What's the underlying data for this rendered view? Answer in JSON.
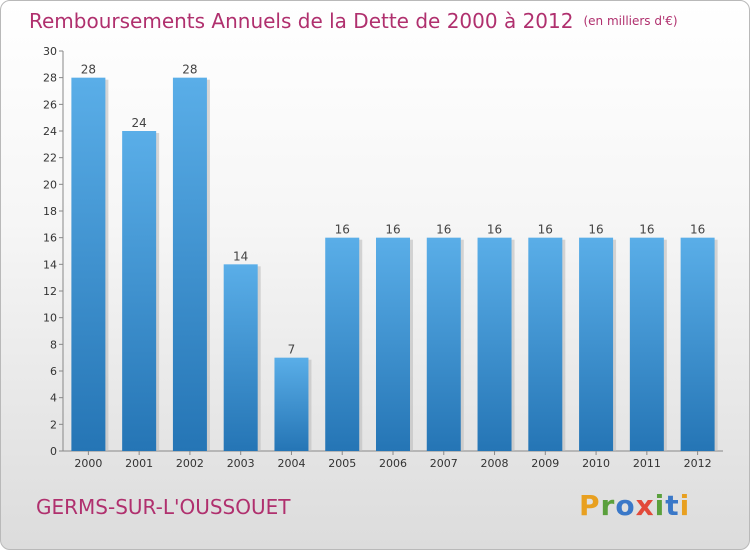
{
  "header": {
    "title": "Remboursements Annuels de la Dette de 2000 à 2012",
    "unit": "(en milliers d'€)"
  },
  "footer": {
    "town": "GERMS-SUR-L'OUSSOUET",
    "logo": {
      "text": "Proxiti",
      "letters": [
        "P",
        "r",
        "o",
        "x",
        "i",
        "t",
        "i"
      ],
      "colors": [
        "#e8a020",
        "#5aa03c",
        "#3a78c8",
        "#e24a3a",
        "#5aa03c",
        "#3a78c8",
        "#e8a020"
      ]
    }
  },
  "chart_data": {
    "type": "bar",
    "categories": [
      "2000",
      "2001",
      "2002",
      "2003",
      "2004",
      "2005",
      "2006",
      "2007",
      "2008",
      "2009",
      "2010",
      "2011",
      "2012"
    ],
    "values": [
      28,
      24,
      28,
      14,
      7,
      16,
      16,
      16,
      16,
      16,
      16,
      16,
      16
    ],
    "ylim": [
      0,
      30
    ],
    "yticks": [
      0,
      2,
      4,
      6,
      8,
      10,
      12,
      14,
      16,
      18,
      20,
      22,
      24,
      26,
      28,
      30
    ],
    "grid": false,
    "legend": "none",
    "bar_color_top": "#5aaee8",
    "bar_color_bottom": "#2575b5"
  }
}
